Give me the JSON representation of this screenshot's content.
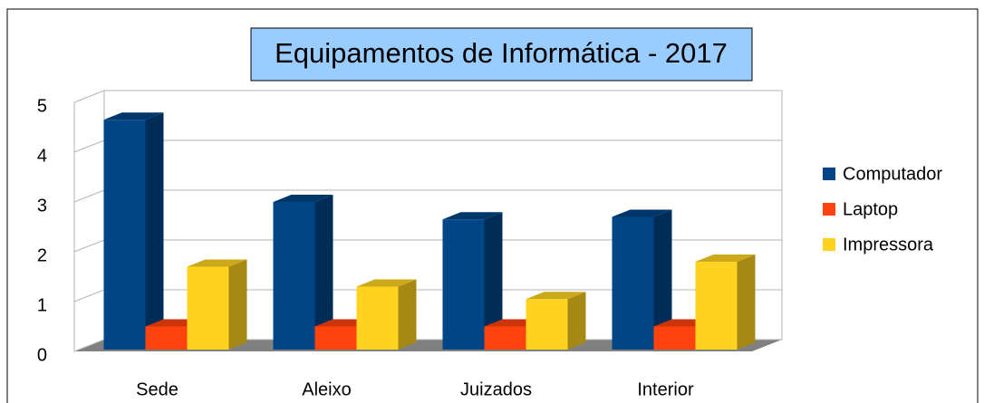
{
  "chart_data": {
    "type": "bar",
    "title": "Equipamentos de Informática - 2017",
    "categories": [
      "Sede",
      "Aleixo",
      "Juizados",
      "Interior"
    ],
    "series": [
      {
        "name": "Computador",
        "color": "#004586",
        "values": [
          4.65,
          3.0,
          2.65,
          2.7
        ]
      },
      {
        "name": "Laptop",
        "color": "#ff420e",
        "values": [
          0.5,
          0.5,
          0.5,
          0.5
        ]
      },
      {
        "name": "Impressora",
        "color": "#ffd320",
        "values": [
          1.7,
          1.3,
          1.05,
          1.8
        ]
      }
    ],
    "ylim": [
      0,
      5
    ],
    "yticks": [
      0,
      1,
      2,
      3,
      4,
      5
    ],
    "grid": true,
    "legend": "right"
  }
}
